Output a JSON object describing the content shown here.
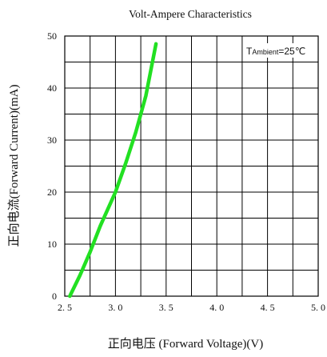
{
  "chart_data": {
    "type": "line",
    "title": "Volt-Ampere Characteristics",
    "xlabel": "正向电压 (Forward Voltage)(V)",
    "ylabel": "正向电流(Forward Current)(mA)",
    "annotation": {
      "prefix": "T",
      "subscript": "Ambient",
      "suffix": "=25℃"
    },
    "xlim": [
      2.5,
      5.0
    ],
    "ylim": [
      0,
      50
    ],
    "x_ticks": [
      {
        "value": 2.5,
        "label": "2. 5"
      },
      {
        "value": 3.0,
        "label": "3. 0"
      },
      {
        "value": 3.5,
        "label": "3. 5"
      },
      {
        "value": 4.0,
        "label": "4. 0"
      },
      {
        "value": 4.5,
        "label": "4. 5"
      },
      {
        "value": 5.0,
        "label": "5. 0"
      }
    ],
    "y_ticks": [
      {
        "value": 0,
        "label": "0"
      },
      {
        "value": 10,
        "label": "10"
      },
      {
        "value": 20,
        "label": "20"
      },
      {
        "value": 30,
        "label": "30"
      },
      {
        "value": 40,
        "label": "40"
      },
      {
        "value": 50,
        "label": "50"
      }
    ],
    "x_grid_values": [
      2.5,
      2.75,
      3.0,
      3.25,
      3.5,
      3.75,
      4.0,
      4.25,
      4.5,
      4.75,
      5.0
    ],
    "y_grid_values": [
      0,
      5,
      10,
      15,
      20,
      25,
      30,
      35,
      40,
      45,
      50
    ],
    "grid": true,
    "series": [
      {
        "color": "#22e022",
        "points": [
          {
            "x": 2.55,
            "y": 0
          },
          {
            "x": 2.65,
            "y": 4
          },
          {
            "x": 2.75,
            "y": 8.5
          },
          {
            "x": 2.85,
            "y": 13.5
          },
          {
            "x": 3.0,
            "y": 20
          },
          {
            "x": 3.1,
            "y": 25.5
          },
          {
            "x": 3.2,
            "y": 31.5
          },
          {
            "x": 3.3,
            "y": 38.5
          },
          {
            "x": 3.4,
            "y": 48.5
          }
        ]
      }
    ]
  }
}
